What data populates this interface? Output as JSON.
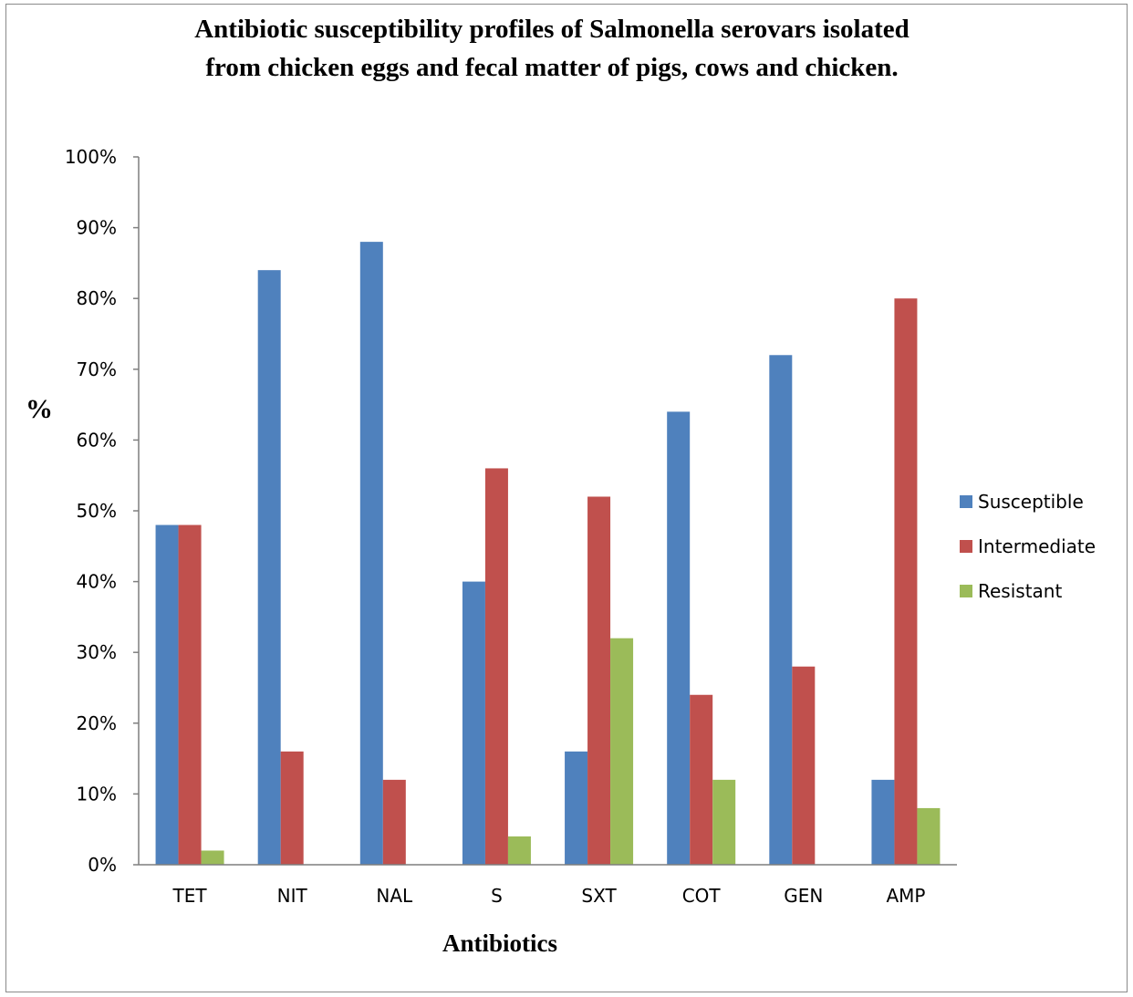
{
  "chart_data": {
    "type": "bar",
    "title_lines": [
      "Antibiotic susceptibility profiles of Salmonella serovars isolated",
      "from chicken eggs and fecal matter of pigs, cows and chicken."
    ],
    "xlabel": "Antibiotics",
    "ylabel": "%",
    "categories": [
      "TET",
      "NIT",
      "NAL",
      "S",
      "SXT",
      "COT",
      "GEN",
      "AMP"
    ],
    "ylim": [
      0,
      100
    ],
    "y_ticks": [
      0,
      10,
      20,
      30,
      40,
      50,
      60,
      70,
      80,
      90,
      100
    ],
    "y_tick_format": "percent",
    "grid": false,
    "legend_position": "right",
    "series": [
      {
        "name": "Susceptible",
        "color": "#4F81BD",
        "values": [
          48,
          84,
          88,
          40,
          16,
          64,
          72,
          12
        ]
      },
      {
        "name": "Intermediate",
        "color": "#C0504D",
        "values": [
          48,
          16,
          12,
          56,
          52,
          24,
          28,
          80
        ]
      },
      {
        "name": "Resistant",
        "color": "#9BBB59",
        "values": [
          2,
          0,
          0,
          4,
          32,
          12,
          0,
          8
        ]
      }
    ]
  }
}
